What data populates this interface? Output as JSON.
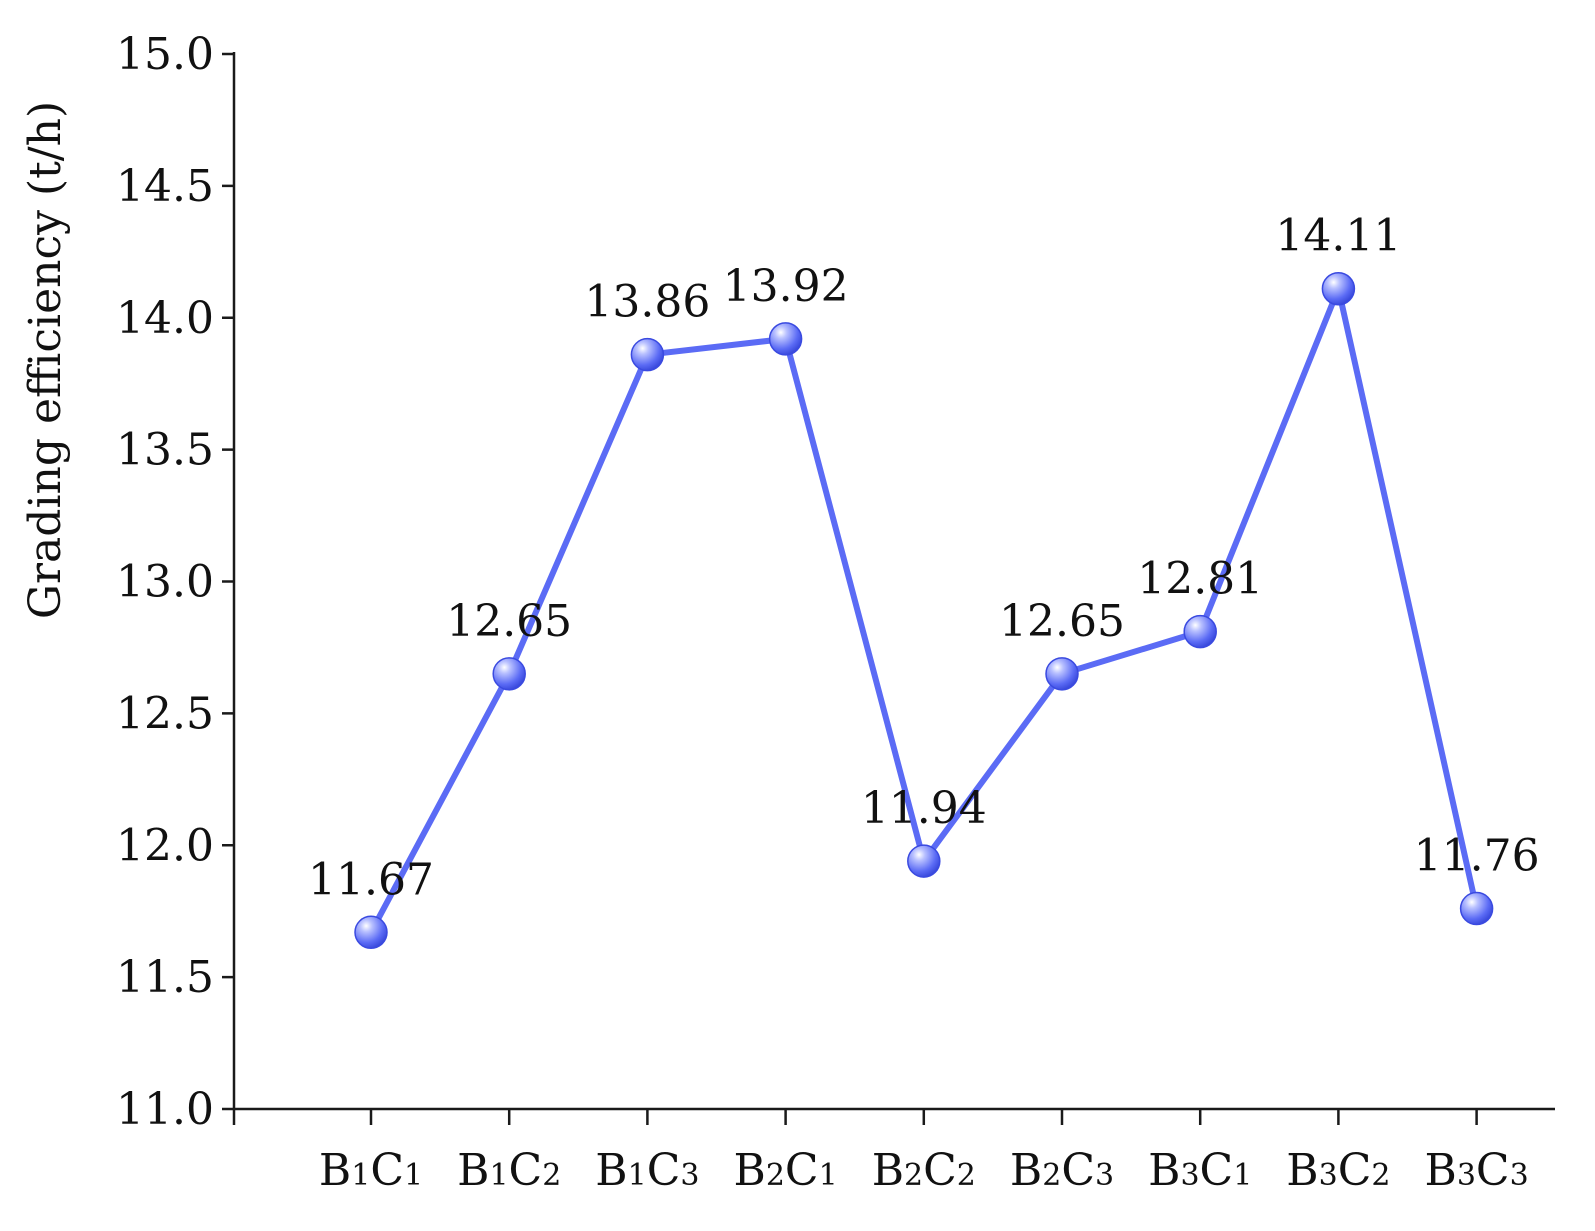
{
  "chart_data": {
    "type": "line",
    "title": "",
    "xlabel": "",
    "ylabel": "Grading efficiency (t/h)",
    "categories": [
      {
        "b": "1",
        "c": "1"
      },
      {
        "b": "1",
        "c": "2"
      },
      {
        "b": "1",
        "c": "3"
      },
      {
        "b": "2",
        "c": "1"
      },
      {
        "b": "2",
        "c": "2"
      },
      {
        "b": "2",
        "c": "3"
      },
      {
        "b": "3",
        "c": "1"
      },
      {
        "b": "3",
        "c": "2"
      },
      {
        "b": "3",
        "c": "3"
      }
    ],
    "category_prefix_1": "B",
    "category_prefix_2": "C",
    "values": [
      11.67,
      12.65,
      13.86,
      13.92,
      11.94,
      12.65,
      12.81,
      14.11,
      11.76
    ],
    "data_labels": [
      "11.67",
      "12.65",
      "13.86",
      "13.92",
      "11.94",
      "12.65",
      "12.81",
      "14.11",
      "11.76"
    ],
    "ylim": [
      11.0,
      15.0
    ],
    "yticks": [
      "11.0",
      "11.5",
      "12.0",
      "12.5",
      "13.0",
      "13.5",
      "14.0",
      "14.5",
      "15.0"
    ],
    "grid": false,
    "legend": "none",
    "line_color": "#5b6bf5",
    "marker_color": "#5b6bf5"
  }
}
